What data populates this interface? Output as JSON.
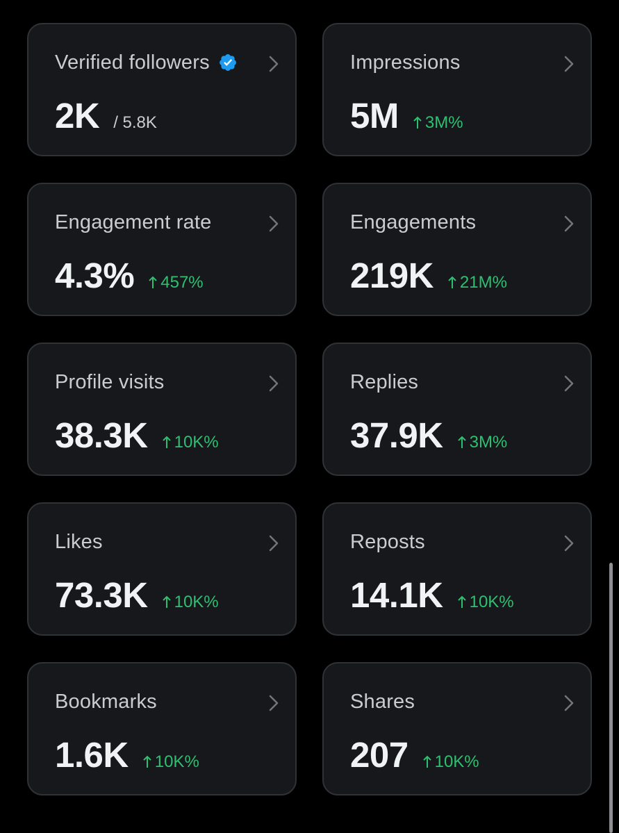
{
  "colors": {
    "background": "#000000",
    "card_bg": "#16181c",
    "card_border": "#2f3336",
    "positive_change": "#2fbf71",
    "verified_badge": "#1d9bf0"
  },
  "cards": [
    {
      "title": "Verified followers",
      "value": "2K",
      "sub": "/ 5.8K",
      "change": "",
      "icon": "verified-badge-icon"
    },
    {
      "title": "Impressions",
      "value": "5M",
      "change": "3M%"
    },
    {
      "title": "Engagement rate",
      "value": "4.3%",
      "change": "457%"
    },
    {
      "title": "Engagements",
      "value": "219K",
      "change": "21M%"
    },
    {
      "title": "Profile visits",
      "value": "38.3K",
      "change": "10K%"
    },
    {
      "title": "Replies",
      "value": "37.9K",
      "change": "3M%"
    },
    {
      "title": "Likes",
      "value": "73.3K",
      "change": "10K%"
    },
    {
      "title": "Reposts",
      "value": "14.1K",
      "change": "10K%"
    },
    {
      "title": "Bookmarks",
      "value": "1.6K",
      "change": "10K%"
    },
    {
      "title": "Shares",
      "value": "207",
      "change": "10K%"
    }
  ]
}
